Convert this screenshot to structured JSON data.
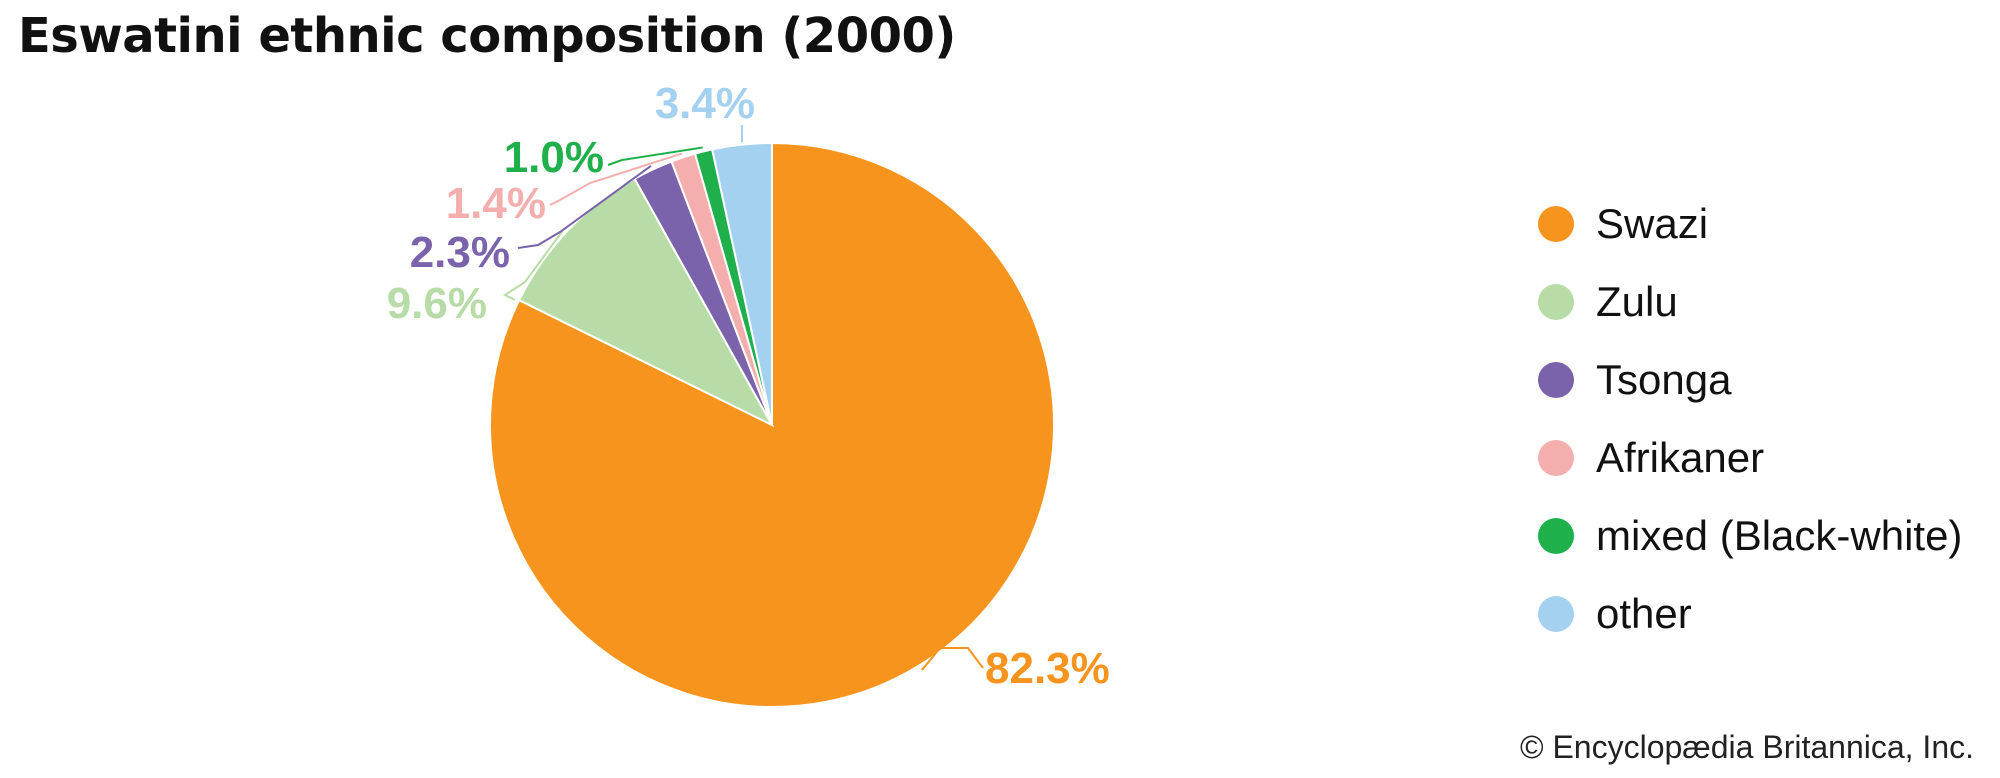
{
  "chart_data": {
    "type": "pie",
    "title": "Eswatini ethnic composition (2000)",
    "categories": [
      "Swazi",
      "Zulu",
      "Tsonga",
      "Afrikaner",
      "mixed (Black-white)",
      "other"
    ],
    "values": [
      82.3,
      9.6,
      2.3,
      1.4,
      1.0,
      3.4
    ],
    "data_labels": [
      "82.3%",
      "9.6%",
      "2.3%",
      "1.4%",
      "1.0%",
      "3.4%"
    ],
    "colors": [
      "#f6941e",
      "#b8dca7",
      "#7b63ab",
      "#f4aeae",
      "#1fb04b",
      "#a4d1ef"
    ],
    "start_angle_deg": 0,
    "direction": "clockwise",
    "legend_position": "right"
  },
  "credit": "© Encyclopædia Britannica, Inc."
}
